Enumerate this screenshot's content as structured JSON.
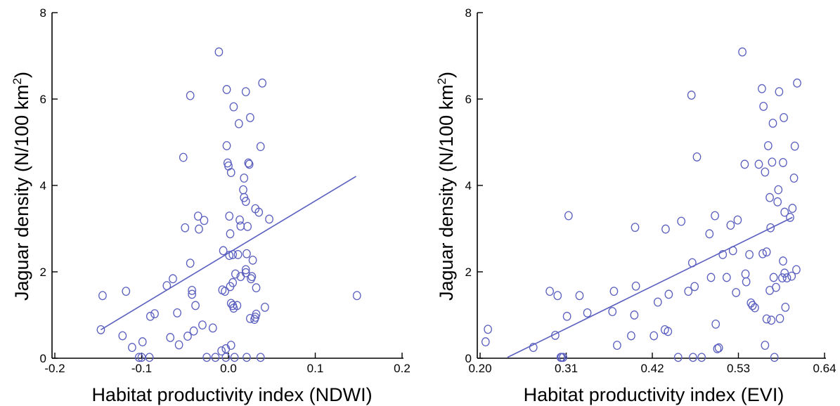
{
  "colors": {
    "marker": "#5a5fbf",
    "axis": "#000000"
  },
  "chart_data": [
    {
      "type": "scatter",
      "xlabel": "Habitat productivity index (NDWI)",
      "ylabel": "Jaguar density (N/100 km",
      "ylabel_sup": "2",
      "ylabel_end": ")",
      "xlim": [
        -0.2,
        0.2
      ],
      "ylim": [
        0,
        8
      ],
      "xticks": [
        -0.2,
        -0.1,
        0.0,
        0.1,
        0.2
      ],
      "xtick_labels": [
        "-0.2",
        "-0.1",
        "0.0",
        "0.1",
        "0.2"
      ],
      "yticks": [
        0,
        2,
        4,
        6,
        8
      ],
      "ytick_labels": [
        "0",
        "2",
        "4",
        "6",
        "8"
      ],
      "grid": false,
      "trend_line": {
        "x": [
          -0.147,
          0.147
        ],
        "y": [
          0.66,
          4.21
        ]
      },
      "points": [
        [
          -0.147,
          0.66
        ],
        [
          -0.145,
          1.45
        ],
        [
          -0.122,
          0.52
        ],
        [
          -0.118,
          1.55
        ],
        [
          -0.111,
          0.25
        ],
        [
          -0.103,
          0.02
        ],
        [
          -0.1,
          0.02
        ],
        [
          -0.099,
          0.38
        ],
        [
          -0.091,
          0.02
        ],
        [
          -0.09,
          0.97
        ],
        [
          -0.085,
          1.03
        ],
        [
          -0.071,
          1.68
        ],
        [
          -0.067,
          0.48
        ],
        [
          -0.064,
          1.84
        ],
        [
          -0.059,
          1.05
        ],
        [
          -0.057,
          0.31
        ],
        [
          -0.052,
          4.65
        ],
        [
          -0.05,
          3.02
        ],
        [
          -0.047,
          0.51
        ],
        [
          -0.044,
          6.08
        ],
        [
          -0.044,
          2.2
        ],
        [
          -0.042,
          1.57
        ],
        [
          -0.042,
          1.48
        ],
        [
          -0.04,
          0.63
        ],
        [
          -0.038,
          1.22
        ],
        [
          -0.035,
          3.29
        ],
        [
          -0.034,
          2.99
        ],
        [
          -0.03,
          0.77
        ],
        [
          -0.028,
          3.19
        ],
        [
          -0.025,
          0.02
        ],
        [
          -0.018,
          0.7
        ],
        [
          -0.015,
          0.02
        ],
        [
          -0.011,
          7.09
        ],
        [
          -0.008,
          0.17
        ],
        [
          -0.007,
          1.58
        ],
        [
          -0.006,
          2.49
        ],
        [
          -0.004,
          1.55
        ],
        [
          -0.003,
          0.22
        ],
        [
          -0.003,
          0.02
        ],
        [
          -0.002,
          6.22
        ],
        [
          -0.002,
          4.92
        ],
        [
          -0.001,
          4.52
        ],
        [
          0.0,
          4.45
        ],
        [
          0.001,
          2.38
        ],
        [
          0.001,
          3.29
        ],
        [
          0.002,
          2.88
        ],
        [
          0.002,
          1.66
        ],
        [
          0.003,
          4.3
        ],
        [
          0.003,
          1.27
        ],
        [
          0.003,
          0.3
        ],
        [
          0.005,
          2.4
        ],
        [
          0.005,
          1.75
        ],
        [
          0.005,
          1.22
        ],
        [
          0.006,
          5.82
        ],
        [
          0.006,
          1.16
        ],
        [
          0.007,
          0.02
        ],
        [
          0.008,
          1.95
        ],
        [
          0.01,
          1.22
        ],
        [
          0.011,
          2.4
        ],
        [
          0.012,
          5.43
        ],
        [
          0.013,
          3.2
        ],
        [
          0.014,
          1.89
        ],
        [
          0.014,
          3.06
        ],
        [
          0.017,
          3.9
        ],
        [
          0.018,
          3.72
        ],
        [
          0.018,
          4.17
        ],
        [
          0.02,
          1.98
        ],
        [
          0.02,
          3.63
        ],
        [
          0.02,
          6.17
        ],
        [
          0.02,
          2.05
        ],
        [
          0.021,
          2.42
        ],
        [
          0.021,
          0.02
        ],
        [
          0.022,
          3.05
        ],
        [
          0.023,
          4.52
        ],
        [
          0.024,
          4.49
        ],
        [
          0.025,
          0.92
        ],
        [
          0.025,
          5.57
        ],
        [
          0.026,
          1.84
        ],
        [
          0.027,
          1.89
        ],
        [
          0.028,
          2.27
        ],
        [
          0.03,
          0.9
        ],
        [
          0.031,
          3.46
        ],
        [
          0.031,
          0.95
        ],
        [
          0.032,
          1.63
        ],
        [
          0.032,
          1.02
        ],
        [
          0.035,
          3.38
        ],
        [
          0.037,
          4.9
        ],
        [
          0.037,
          0.02
        ],
        [
          0.039,
          6.37
        ],
        [
          0.042,
          1.18
        ],
        [
          0.047,
          3.22
        ],
        [
          0.148,
          1.45
        ]
      ]
    },
    {
      "type": "scatter",
      "xlabel": "Habitat productivity index (EVI)",
      "ylabel": "Jaguar density (N/100 km",
      "ylabel_sup": "2",
      "ylabel_end": ")",
      "xlim": [
        0.2,
        0.64
      ],
      "ylim": [
        0,
        8
      ],
      "xticks": [
        0.2,
        0.31,
        0.42,
        0.53,
        0.64
      ],
      "xtick_labels": [
        "0.20",
        "0.31",
        "0.42",
        "0.53",
        "0.64"
      ],
      "yticks": [
        0,
        2,
        4,
        6,
        8
      ],
      "ytick_labels": [
        "0",
        "2",
        "4",
        "6",
        "8"
      ],
      "grid": false,
      "trend_line": {
        "x": [
          0.235,
          0.599
        ],
        "y": [
          0.02,
          3.26
        ]
      },
      "points": [
        [
          0.207,
          0.38
        ],
        [
          0.21,
          0.67
        ],
        [
          0.268,
          0.25
        ],
        [
          0.289,
          1.55
        ],
        [
          0.296,
          0.53
        ],
        [
          0.299,
          1.45
        ],
        [
          0.303,
          0.02
        ],
        [
          0.304,
          0.02
        ],
        [
          0.306,
          0.02
        ],
        [
          0.311,
          0.97
        ],
        [
          0.313,
          3.3
        ],
        [
          0.327,
          1.45
        ],
        [
          0.337,
          1.05
        ],
        [
          0.369,
          1.08
        ],
        [
          0.371,
          1.55
        ],
        [
          0.375,
          0.3
        ],
        [
          0.393,
          0.52
        ],
        [
          0.397,
          1.0
        ],
        [
          0.398,
          3.03
        ],
        [
          0.399,
          1.67
        ],
        [
          0.422,
          0.52
        ],
        [
          0.427,
          1.3
        ],
        [
          0.436,
          0.66
        ],
        [
          0.437,
          2.99
        ],
        [
          0.44,
          0.62
        ],
        [
          0.441,
          1.48
        ],
        [
          0.453,
          0.02
        ],
        [
          0.457,
          3.17
        ],
        [
          0.466,
          1.55
        ],
        [
          0.47,
          6.09
        ],
        [
          0.471,
          2.21
        ],
        [
          0.472,
          0.02
        ],
        [
          0.474,
          1.66
        ],
        [
          0.477,
          4.66
        ],
        [
          0.483,
          0.02
        ],
        [
          0.493,
          2.88
        ],
        [
          0.495,
          1.87
        ],
        [
          0.5,
          3.3
        ],
        [
          0.501,
          0.79
        ],
        [
          0.503,
          0.22
        ],
        [
          0.505,
          0.24
        ],
        [
          0.51,
          2.4
        ],
        [
          0.515,
          1.87
        ],
        [
          0.52,
          3.08
        ],
        [
          0.523,
          2.49
        ],
        [
          0.527,
          1.52
        ],
        [
          0.529,
          3.2
        ],
        [
          0.535,
          7.09
        ],
        [
          0.538,
          4.49
        ],
        [
          0.539,
          1.95
        ],
        [
          0.54,
          1.77
        ],
        [
          0.544,
          2.4
        ],
        [
          0.546,
          1.28
        ],
        [
          0.548,
          1.22
        ],
        [
          0.551,
          1.17
        ],
        [
          0.556,
          4.49
        ],
        [
          0.56,
          6.24
        ],
        [
          0.561,
          2.42
        ],
        [
          0.562,
          5.83
        ],
        [
          0.564,
          0.3
        ],
        [
          0.564,
          4.31
        ],
        [
          0.566,
          2.46
        ],
        [
          0.566,
          0.91
        ],
        [
          0.568,
          4.92
        ],
        [
          0.57,
          3.72
        ],
        [
          0.57,
          1.57
        ],
        [
          0.571,
          3.02
        ],
        [
          0.572,
          0.88
        ],
        [
          0.573,
          4.54
        ],
        [
          0.574,
          5.44
        ],
        [
          0.575,
          1.87
        ],
        [
          0.576,
          0.02
        ],
        [
          0.578,
          1.64
        ],
        [
          0.58,
          3.62
        ],
        [
          0.581,
          3.9
        ],
        [
          0.582,
          6.17
        ],
        [
          0.583,
          0.92
        ],
        [
          0.586,
          1.86
        ],
        [
          0.587,
          2.25
        ],
        [
          0.587,
          4.53
        ],
        [
          0.588,
          5.57
        ],
        [
          0.589,
          1.97
        ],
        [
          0.589,
          3.38
        ],
        [
          0.59,
          1.18
        ],
        [
          0.592,
          1.86
        ],
        [
          0.596,
          3.26
        ],
        [
          0.598,
          1.9
        ],
        [
          0.599,
          3.47
        ],
        [
          0.601,
          4.17
        ],
        [
          0.602,
          4.91
        ],
        [
          0.604,
          2.05
        ],
        [
          0.605,
          6.37
        ]
      ]
    }
  ]
}
